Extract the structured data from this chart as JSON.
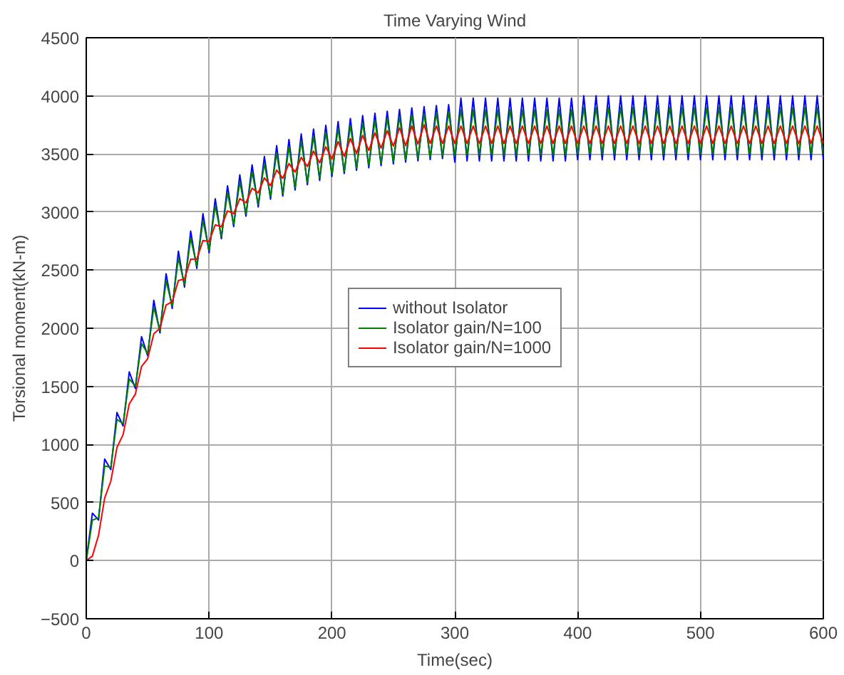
{
  "chart_data": {
    "type": "line",
    "title": "Time Varying Wind",
    "xlabel": "Time(sec)",
    "ylabel": "Torsional moment(kN-m)",
    "x": [
      0,
      5,
      10,
      15,
      20,
      25,
      30,
      35,
      40,
      45,
      50,
      55,
      60,
      65,
      70,
      75,
      80,
      85,
      90,
      95,
      100,
      105,
      110,
      115,
      120,
      125,
      130,
      135,
      140,
      145,
      150,
      155,
      160,
      165,
      170,
      175,
      180,
      185,
      190,
      195,
      200,
      205,
      210,
      215,
      220,
      225,
      230,
      235,
      240,
      245,
      250,
      255,
      260,
      265,
      270,
      275,
      280,
      285,
      290,
      295,
      300,
      305,
      310,
      315,
      320,
      325,
      330,
      335,
      340,
      345,
      350,
      355,
      360,
      365,
      370,
      375,
      380,
      385,
      390,
      395,
      400,
      405,
      410,
      415,
      420,
      425,
      430,
      435,
      440,
      445,
      450,
      455,
      460,
      465,
      470,
      475,
      480,
      485,
      490,
      495,
      500,
      505,
      510,
      515,
      520,
      525,
      530,
      535,
      540,
      545,
      550,
      555,
      560,
      565,
      570,
      575,
      580,
      585,
      590,
      595,
      600
    ],
    "xlim": [
      0,
      600
    ],
    "xticks": [
      0,
      100,
      200,
      300,
      400,
      500,
      600
    ],
    "ylim": [
      -500,
      4500
    ],
    "yticks": [
      -500,
      0,
      500,
      1000,
      1500,
      2000,
      2500,
      3000,
      3500,
      4000,
      4500
    ],
    "grid": true,
    "legend": "center",
    "line_style": "solid",
    "marker": "none",
    "series": [
      {
        "name": "without Isolator",
        "color": "#0000ff",
        "values": [
          0,
          409,
          349,
          874,
          784,
          1275,
          1159,
          1624,
          1481,
          1928,
          1763,
          2240,
          1960,
          2469,
          2170,
          2664,
          2354,
          2836,
          2515,
          2986,
          2650,
          3114,
          2770,
          3226,
          2875,
          3320,
          2965,
          3406,
          3044,
          3478,
          3111,
          3571,
          3138,
          3624,
          3190,
          3672,
          3235,
          3714,
          3272,
          3747,
          3306,
          3779,
          3332,
          3805,
          3359,
          3830,
          3381,
          3850,
          3400,
          3868,
          3415,
          3883,
          3430,
          3896,
          3441,
          3907,
          3452,
          3916,
          3460,
          3924,
          3430,
          3980,
          3440,
          3980,
          3440,
          3980,
          3440,
          3980,
          3440,
          3980,
          3440,
          3980,
          3440,
          3980,
          3440,
          3980,
          3440,
          3980,
          3440,
          3980,
          3450,
          4000,
          3450,
          4000,
          3450,
          4000,
          3450,
          4000,
          3450,
          4000,
          3450,
          4000,
          3450,
          4000,
          3450,
          4000,
          3450,
          4000,
          3450,
          4000,
          3450,
          4000,
          3450,
          4000,
          3450,
          4000,
          3450,
          4000,
          3450,
          4000,
          3450,
          4000,
          3450,
          4000,
          3450,
          4000,
          3450,
          4000,
          3450,
          4000,
          3450
        ]
      },
      {
        "name": "Isolator gain/N=100",
        "color": "#008000",
        "values": [
          0,
          349,
          369,
          814,
          804,
          1215,
          1179,
          1564,
          1501,
          1868,
          1783,
          2180,
          1980,
          2409,
          2190,
          2604,
          2374,
          2776,
          2535,
          2926,
          2670,
          3054,
          2790,
          3166,
          2895,
          3260,
          2985,
          3346,
          3064,
          3418,
          3131,
          3511,
          3158,
          3564,
          3210,
          3612,
          3255,
          3654,
          3292,
          3687,
          3326,
          3719,
          3352,
          3745,
          3379,
          3770,
          3401,
          3790,
          3420,
          3808,
          3435,
          3823,
          3450,
          3836,
          3461,
          3847,
          3472,
          3856,
          3480,
          3864,
          3480,
          3880,
          3490,
          3880,
          3490,
          3880,
          3490,
          3880,
          3490,
          3880,
          3490,
          3880,
          3490,
          3880,
          3490,
          3880,
          3490,
          3880,
          3490,
          3880,
          3500,
          3900,
          3500,
          3900,
          3500,
          3900,
          3500,
          3900,
          3500,
          3900,
          3500,
          3900,
          3500,
          3900,
          3500,
          3900,
          3500,
          3900,
          3500,
          3900,
          3500,
          3900,
          3500,
          3900,
          3500,
          3900,
          3500,
          3900,
          3500,
          3900,
          3500,
          3900,
          3500,
          3900,
          3500,
          3900,
          3500,
          3900,
          3500,
          3900,
          3500
        ]
      },
      {
        "name": "Isolator gain/N=1000",
        "color": "#ff0000",
        "values": [
          0,
          40,
          219,
          539,
          684,
          974,
          1085,
          1349,
          1434,
          1671,
          1738,
          1953,
          2000,
          2200,
          2229,
          2410,
          2424,
          2594,
          2596,
          2755,
          2746,
          2890,
          2874,
          3010,
          2986,
          3115,
          3080,
          3205,
          3166,
          3294,
          3228,
          3361,
          3291,
          3418,
          3344,
          3470,
          3392,
          3525,
          3424,
          3562,
          3457,
          3606,
          3479,
          3632,
          3505,
          3659,
          3530,
          3681,
          3551,
          3700,
          3568,
          3725,
          3572,
          3740,
          3585,
          3751,
          3590,
          3740,
          3590,
          3740,
          3590,
          3740,
          3590,
          3740,
          3590,
          3740,
          3590,
          3740,
          3590,
          3740,
          3590,
          3740,
          3590,
          3740,
          3590,
          3740,
          3590,
          3740,
          3590,
          3740,
          3590,
          3740,
          3590,
          3740,
          3590,
          3740,
          3590,
          3740,
          3590,
          3740,
          3590,
          3740,
          3590,
          3740,
          3590,
          3740,
          3590,
          3740,
          3590,
          3740,
          3590,
          3740,
          3590,
          3740,
          3590,
          3740,
          3590,
          3740,
          3590,
          3740,
          3590,
          3740,
          3590,
          3740,
          3590,
          3740,
          3590,
          3740,
          3590,
          3740,
          3590
        ]
      }
    ]
  }
}
